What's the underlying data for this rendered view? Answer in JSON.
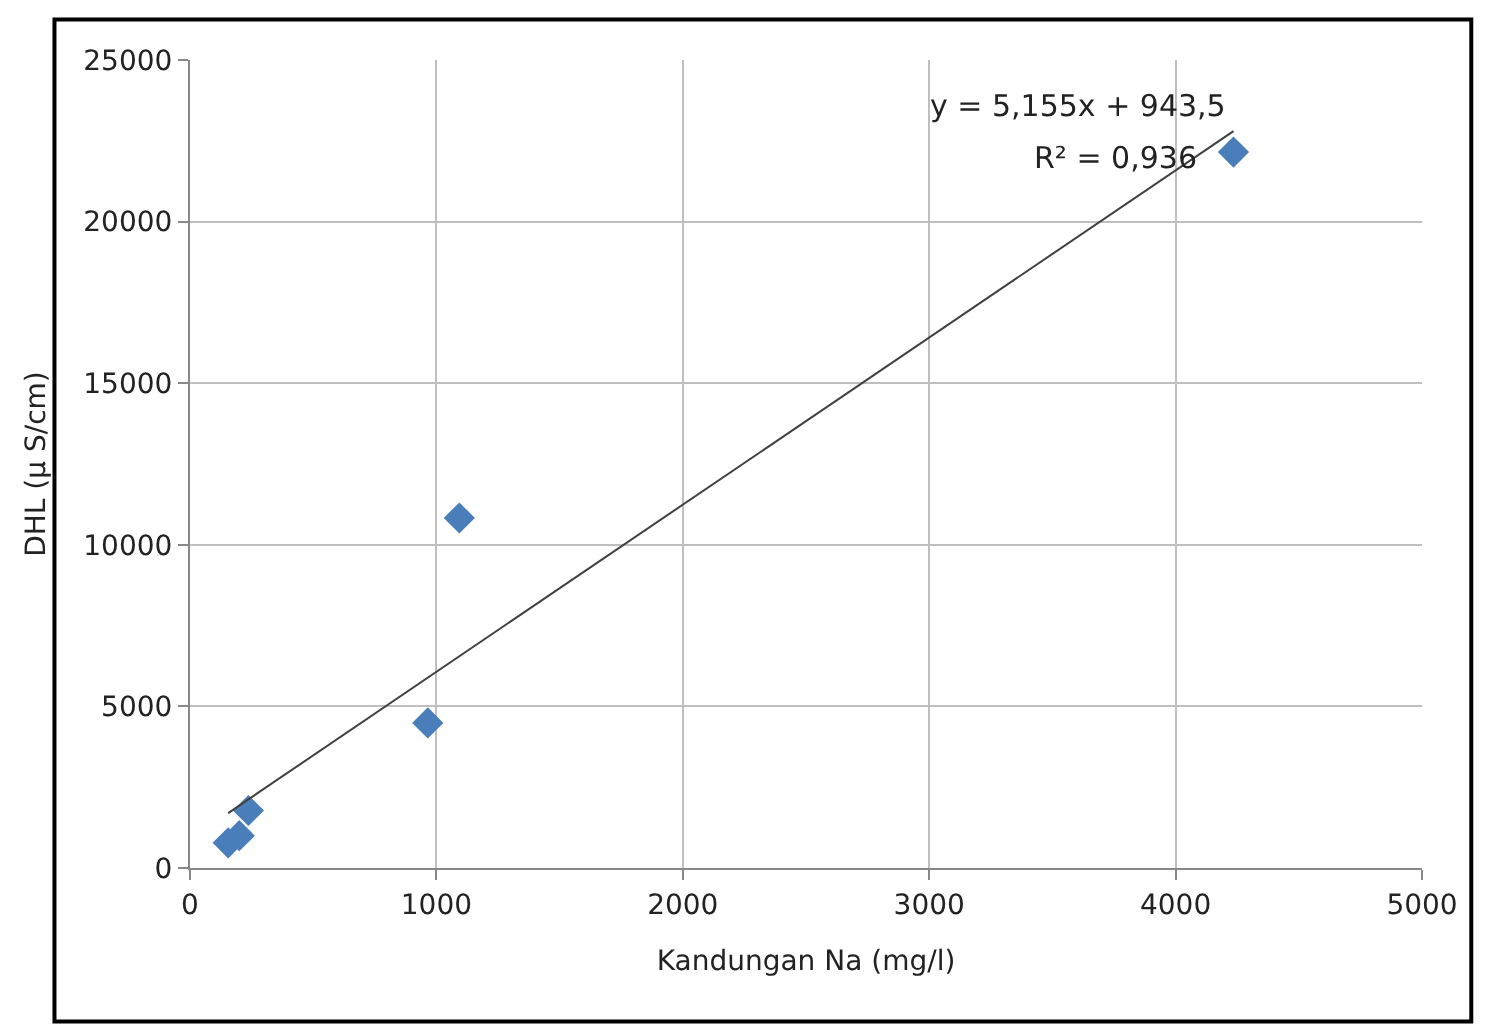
{
  "chart_data": {
    "type": "scatter",
    "xlabel": "Kandungan Na (mg/l)",
    "ylabel": "DHL (µ S/cm)",
    "series": [
      {
        "color": "#4a7ebb",
        "marker": "diamond",
        "x": [
          155,
          200,
          237,
          965,
          1093,
          4235
        ],
        "values": [
          780,
          1000,
          1780,
          4490,
          10830,
          22150
        ]
      },
      {
        "type": "line",
        "color": "#404040",
        "marker": "none",
        "x": [
          155,
          4235
        ],
        "values": [
          1700,
          22800
        ]
      }
    ],
    "xlim": [
      0,
      5000
    ],
    "xticks": [
      0,
      1000,
      2000,
      3000,
      4000,
      5000
    ],
    "ylim": [
      0,
      25000
    ],
    "yticks": [
      0,
      5000,
      10000,
      15000,
      20000,
      25000
    ],
    "grid": true,
    "legend": false,
    "annotations": [
      "y = 5,155x + 943,5",
      "R² = 0,936"
    ]
  }
}
